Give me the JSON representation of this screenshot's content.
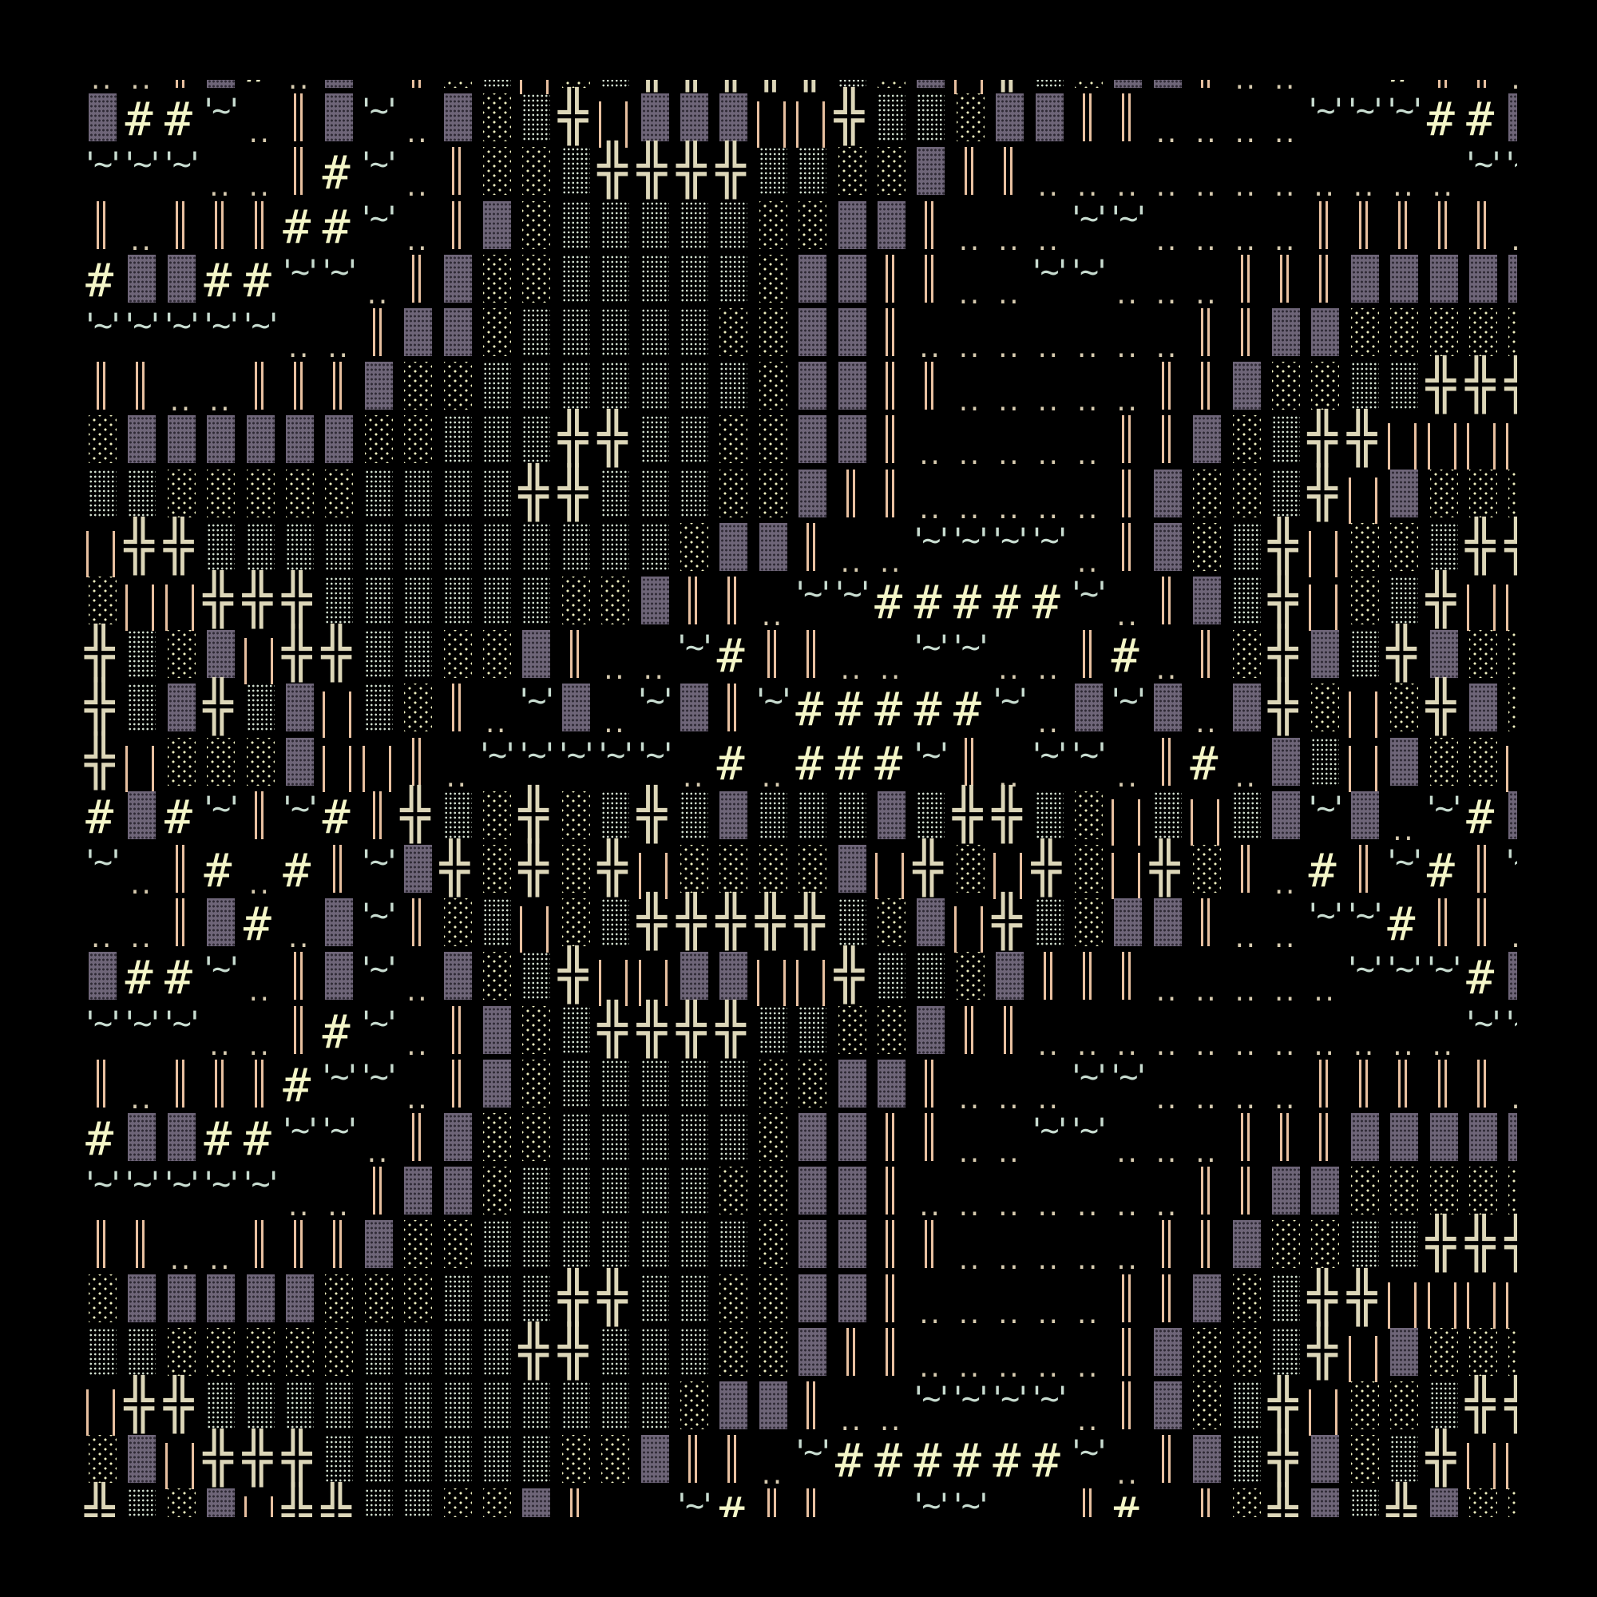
{
  "colors": {
    "background": "#000000",
    "block": "#6e6578",
    "dense_shade": "#d2e0d0",
    "light_shade": "#f0f0c0",
    "double_cross": "#dcd6b8",
    "bars": "#e8c0a0",
    "hash": "#f4f6c8",
    "tilde": "#c8dcd0",
    "dots": "#d8ccb0"
  },
  "glyphs": {
    "B": {
      "name": "full-block",
      "char": "█"
    },
    "D": {
      "name": "dense-shade",
      "char": "▒"
    },
    "L": {
      "name": "light-shade",
      "char": "░"
    },
    "X": {
      "name": "double-cross",
      "char": "╬"
    },
    "V": {
      "name": "double-vertical",
      "char": "║"
    },
    "U": {
      "name": "bracket-bars",
      "char": "| |"
    },
    "H": {
      "name": "hash",
      "char": "#"
    },
    "T": {
      "name": "tilde",
      "char": "'~'"
    },
    "O": {
      "name": "dots",
      "char": ".."
    }
  },
  "rows": [
    "OOVBHOBTVLDULDXXXXXDLBUXDLBBVOOTTHVVO",
    "BHHTOVBTOBLDXUBBBUUXDDLBBVVOOOOTTTHHB",
    "TTTOOVHTOVLLDXXXXDDLLBVVOOOOOOOOOOOTT",
    "VOVVVHHTOVBLDDDDDLLBBVOOOTTOOOOVVVVVO",
    "HBBHHTTOVBLLDDDDDLBBVVOOTTOOOVVVBBBBB",
    "TTTTTOOVBBLDDDDDLLBBVOOOOOOOVVBBLLLLL",
    "VVOOVVVBLLDDDDDDDLBBVVOOOOOVVBLLDDXXX",
    "LBBBBBBLLDDDXXDDLLBBVOOOOOVVBLDXXUUUU",
    "DDLLLLLDDDDXXDDDLLBVVOOOOOVBLLDXUBLLL",
    "UXXDDDDDDDDDDDDLBBVOOTTTTOVBLDXULLDXX",
    "LUUXXXDDDDDDLLBVVOTTHHHHHTOVBDXULDXUU",
    "XDLBUXXDDLLBVOOTHVVOOTTOOVHOVLXBDXBLL",
    "XDBXDBUDLVOTBOTBVTHHHHHTOBTBOBXLULXBL",
    "XULLLBUUVOTTTTTOHOHHHTVOTTOVHOBDUBLLU",
    "HBHTVTHVXDLXLDXDBDDDBDXXDLUDUDBTBOTHB",
    "TOVHOHVTBXLXLXULLLLBUXLUXLUXLVOHVTHVT",
    "OOVBHOBTVLDULDXXXXXDLBUXDLBBVOOTTHVVO",
    "BHHTOVBTOBLDXUUBBUUXDDLBVVVOOOOOTTTHB",
    "TTTOOVHTOVBLDXXXXDDLLBVVOOOOOOOOOOOTT",
    "VOVVVHTTOVBLDDDDDLLBBVOOOTTOOOOVVVVVO",
    "HBBHHTTOVBLLDDDDDLBBVVOOTTOOOVVVBBBBB",
    "TTTTTOOVBBLDDDDDLLBBVOOOOOOOVVBBLLLLL",
    "VVOOVVVBLLDDDDDDDLBBVVOOOOOVVBLLDDXXX",
    "LBBBBBLLLDDDXXDDLLBBVOOOOOVVBLDXXUUUU",
    "DDLLLLLDDDDXXDDDLLBVVOOOOOVBLLDXUBLLL",
    "UXXDDDDDDDDDDDDLBBVOOTTTTOVBLDXULLDXX",
    "LBUXXXDDDDDDLLBVVOTHHHHHHTOVBDXBLDXUU",
    "XDLBUXXDDLLBVOOTHVVOOTTOOVHOVLXBDXBLL"
  ]
}
